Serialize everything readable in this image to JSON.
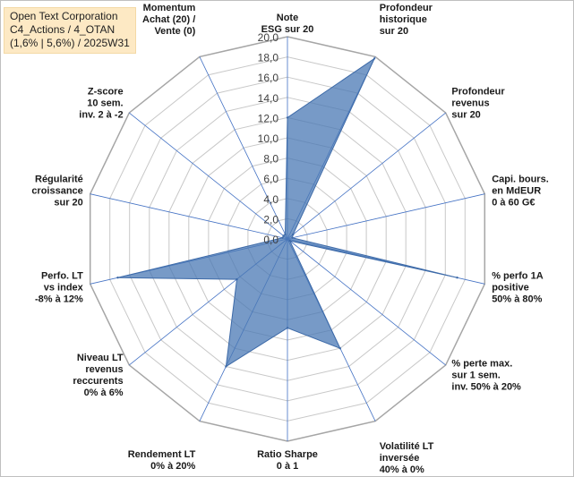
{
  "title_box": {
    "line1": "Open Text Corporation",
    "line2": "C4_Actions / 4_OTAN",
    "line3": "(1,6% | 5,6%) / 2025W31"
  },
  "chart_data": {
    "type": "radar",
    "title": "Open Text Corporation C4_Actions / 4_OTAN (1,6% | 5,6%) / 2025W31",
    "rlim": [
      0,
      20
    ],
    "r_ticks": [
      "0,0",
      "2,0",
      "4,0",
      "6,0",
      "8,0",
      "10,0",
      "12,0",
      "14,0",
      "16,0",
      "18,0",
      "20,0"
    ],
    "grid": true,
    "categories": [
      [
        "Note",
        "ESG sur 20"
      ],
      [
        "Profondeur",
        "historique",
        "sur 20"
      ],
      [
        "Profondeur",
        "revenus",
        "sur 20"
      ],
      [
        "Capi. bours.",
        "en MdEUR",
        "0 à 60 G€"
      ],
      [
        "% perfo 1A",
        "positive",
        "50% à 80%"
      ],
      [
        "% perte max.",
        "sur 1 sem.",
        "inv. 50% à 20%"
      ],
      [
        "Volatilité LT",
        "inversée",
        "40% à 0%"
      ],
      [
        "Ratio Sharpe",
        "0 à 1"
      ],
      [
        "Rendement LT",
        "0% à 20%"
      ],
      [
        "Niveau LT",
        "revenus",
        "reccurents",
        "0% à 6%"
      ],
      [
        "Perfo. LT",
        "vs index",
        "-8% à 12%"
      ],
      [
        "Régularité",
        "croissance",
        "sur 20"
      ],
      [
        "Z-score",
        "10 sem.",
        "inv. 2 à -2"
      ],
      [
        "Momentum",
        "Achat (20) /",
        "Vente (0)"
      ]
    ],
    "series": [
      {
        "values": [
          12.0,
          19.8,
          0.7,
          0.5,
          17.2,
          0.3,
          12.0,
          8.8,
          14.0,
          6.4,
          17.2,
          0.5,
          0.5,
          0.5
        ]
      }
    ],
    "colors": {
      "fill": "#4a78b4",
      "fill_opacity": 0.75,
      "stroke": "#3d6aa8",
      "grid": "#c8c8c8",
      "grid_outer": "#a6a6a6",
      "spoke": "#4472c4"
    }
  }
}
